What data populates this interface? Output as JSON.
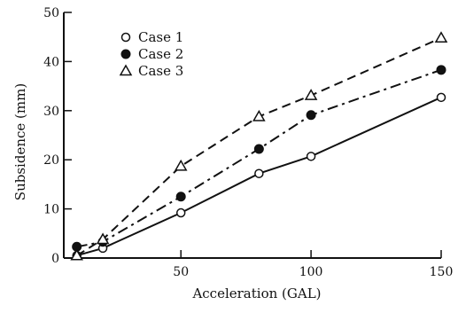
{
  "chart_data": {
    "type": "line",
    "title": "",
    "xlabel": "Acceleration (GAL)",
    "ylabel": "Subsidence (mm)",
    "xlim": [
      5,
      150
    ],
    "ylim": [
      0,
      50
    ],
    "xticks": [
      50,
      100,
      150
    ],
    "yticks": [
      0,
      10,
      20,
      30,
      40,
      50
    ],
    "grid": false,
    "legend": "top-left",
    "series": [
      {
        "name": "Case 1",
        "marker": "open-circle",
        "line_style": "solid",
        "color": "#111111",
        "x": [
          10,
          20,
          50,
          80,
          100,
          150
        ],
        "y": [
          0.5,
          2,
          9.2,
          17.2,
          20.7,
          32.7
        ]
      },
      {
        "name": "Case 2",
        "marker": "filled-circle",
        "line_style": "dash-dot",
        "color": "#111111",
        "x": [
          10,
          20,
          50,
          80,
          100,
          150
        ],
        "y": [
          2.3,
          3.3,
          12.5,
          22.2,
          29.1,
          38.3
        ]
      },
      {
        "name": "Case 3",
        "marker": "open-triangle",
        "line_style": "dashed",
        "color": "#111111",
        "x": [
          10,
          20,
          50,
          80,
          100,
          150
        ],
        "y": [
          0.5,
          3.8,
          18.7,
          28.8,
          33.1,
          44.8
        ]
      }
    ]
  }
}
